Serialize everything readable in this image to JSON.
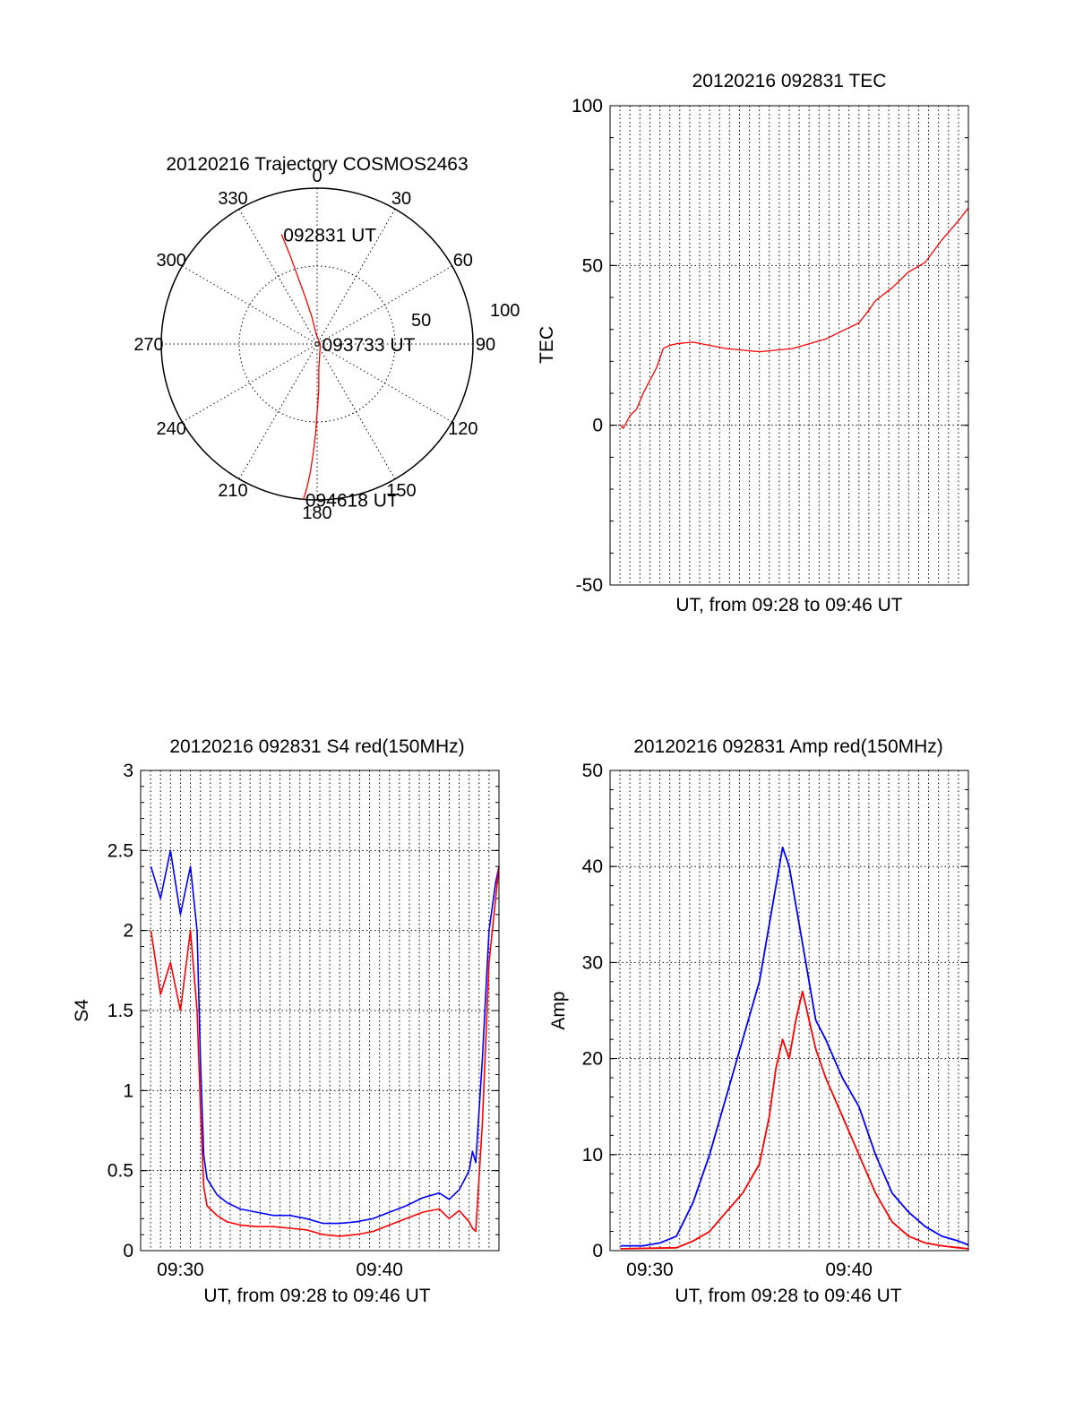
{
  "colors": {
    "red": "#ff0000",
    "blue": "#0000ff",
    "axis": "#000000",
    "grid": "#000000"
  },
  "chart_data": [
    {
      "id": "trajectory",
      "type": "polar",
      "title": "20120216 Trajectory COSMOS2463",
      "angle_labels": [
        "0",
        "30",
        "60",
        "90",
        "120",
        "150",
        "180",
        "210",
        "240",
        "270",
        "300",
        "330"
      ],
      "radius_labels": [
        "50",
        "100"
      ],
      "grid": true,
      "series": [
        {
          "color": "red",
          "points": [
            [
              342,
              74
            ],
            [
              343,
              60
            ],
            [
              344,
              45
            ],
            [
              346,
              30
            ],
            [
              349,
              18
            ],
            [
              355,
              6
            ],
            [
              90,
              2
            ],
            [
              176,
              16
            ],
            [
              178,
              30
            ],
            [
              180,
              44
            ],
            [
              181,
              58
            ],
            [
              182,
              70
            ],
            [
              183,
              82
            ],
            [
              184,
              92
            ],
            [
              185,
              100
            ]
          ]
        }
      ],
      "annotations": [
        {
          "text": "092831 UT",
          "az": 342,
          "el": 74
        },
        {
          "text": "093733 UT",
          "az": 90,
          "el": 2
        },
        {
          "text": "094618 UT",
          "az": 185,
          "el": 100
        }
      ]
    },
    {
      "id": "tec",
      "type": "line",
      "title": "20120216 092831 TEC",
      "xlabel": "UT, from 09:28 to 09:46 UT",
      "ylabel": "TEC",
      "xlim": [
        0,
        1080
      ],
      "ylim": [
        -50,
        100
      ],
      "yticks": [
        "100",
        "50",
        "0",
        "-50"
      ],
      "grid": true,
      "series": [
        {
          "color": "red",
          "x": [
            31,
            40,
            60,
            80,
            100,
            120,
            140,
            160,
            180,
            200,
            250,
            300,
            350,
            400,
            450,
            500,
            550,
            600,
            650,
            700,
            750,
            780,
            800,
            850,
            900,
            950,
            1000,
            1050,
            1080
          ],
          "y": [
            0,
            -1,
            3,
            5,
            10,
            14,
            18,
            24,
            25,
            25.5,
            26,
            25,
            24,
            23.5,
            23,
            23.5,
            24,
            25.5,
            27,
            29.5,
            32,
            36,
            39,
            43,
            48,
            51,
            58,
            64,
            68
          ]
        }
      ]
    },
    {
      "id": "s4",
      "type": "line",
      "title": "20120216 092831 S4 red(150MHz)",
      "xlabel": "UT, from 09:28 to 09:46 UT",
      "ylabel": "S4",
      "xlim": [
        0,
        1080
      ],
      "ylim": [
        0,
        3
      ],
      "yticks": [
        "3",
        "2.5",
        "2",
        "1.5",
        "1",
        "0.5",
        "0"
      ],
      "xticks": [
        {
          "value": 120,
          "label": "09:30"
        },
        {
          "value": 720,
          "label": "09:40"
        }
      ],
      "grid": true,
      "series": [
        {
          "color": "blue",
          "x": [
            31,
            60,
            90,
            120,
            150,
            170,
            180,
            190,
            200,
            230,
            260,
            300,
            350,
            400,
            450,
            500,
            550,
            600,
            650,
            700,
            750,
            800,
            850,
            900,
            930,
            960,
            990,
            1000,
            1010,
            1030,
            1050,
            1070,
            1080
          ],
          "y": [
            2.4,
            2.2,
            2.5,
            2.1,
            2.4,
            2.0,
            1.2,
            0.6,
            0.45,
            0.35,
            0.3,
            0.26,
            0.24,
            0.22,
            0.22,
            0.2,
            0.17,
            0.17,
            0.18,
            0.2,
            0.24,
            0.28,
            0.33,
            0.36,
            0.32,
            0.38,
            0.5,
            0.62,
            0.55,
            1.2,
            2.0,
            2.3,
            2.4
          ]
        },
        {
          "color": "red",
          "x": [
            31,
            60,
            90,
            120,
            150,
            170,
            180,
            190,
            200,
            230,
            260,
            300,
            350,
            400,
            450,
            500,
            550,
            600,
            650,
            700,
            750,
            800,
            850,
            900,
            930,
            960,
            990,
            1000,
            1010,
            1030,
            1050,
            1070,
            1080
          ],
          "y": [
            2.0,
            1.6,
            1.8,
            1.5,
            2.0,
            1.5,
            0.9,
            0.4,
            0.28,
            0.22,
            0.18,
            0.16,
            0.15,
            0.15,
            0.14,
            0.13,
            0.1,
            0.09,
            0.1,
            0.12,
            0.16,
            0.2,
            0.24,
            0.26,
            0.2,
            0.25,
            0.18,
            0.14,
            0.12,
            0.8,
            1.8,
            2.2,
            2.4
          ]
        }
      ]
    },
    {
      "id": "amp",
      "type": "line",
      "title": "20120216 092831 Amp red(150MHz)",
      "xlabel": "UT, from 09:28 to 09:46 UT",
      "ylabel": "Amp",
      "xlim": [
        0,
        1080
      ],
      "ylim": [
        0,
        50
      ],
      "yticks": [
        "50",
        "40",
        "30",
        "20",
        "10",
        "0"
      ],
      "xticks": [
        {
          "value": 120,
          "label": "09:30"
        },
        {
          "value": 720,
          "label": "09:40"
        }
      ],
      "grid": true,
      "series": [
        {
          "color": "blue",
          "x": [
            31,
            100,
            150,
            200,
            250,
            300,
            350,
            400,
            450,
            480,
            500,
            520,
            540,
            560,
            580,
            600,
            620,
            650,
            700,
            750,
            800,
            850,
            900,
            950,
            1000,
            1050,
            1080
          ],
          "y": [
            0.5,
            0.5,
            0.8,
            1.5,
            5,
            10,
            16,
            22,
            28,
            34,
            38,
            42,
            40,
            36,
            32,
            28,
            24,
            22,
            18,
            15,
            10,
            6,
            4,
            2.5,
            1.5,
            1,
            0.6
          ]
        },
        {
          "color": "red",
          "x": [
            31,
            200,
            250,
            300,
            350,
            400,
            450,
            480,
            500,
            520,
            540,
            560,
            580,
            600,
            620,
            650,
            700,
            750,
            800,
            850,
            900,
            950,
            1000,
            1050,
            1080
          ],
          "y": [
            0.2,
            0.3,
            1,
            2,
            4,
            6,
            9,
            14,
            19,
            22,
            20,
            24,
            27,
            24,
            21,
            18,
            14,
            10,
            6,
            3,
            1.5,
            0.8,
            0.5,
            0.3,
            0.2
          ]
        }
      ]
    }
  ]
}
